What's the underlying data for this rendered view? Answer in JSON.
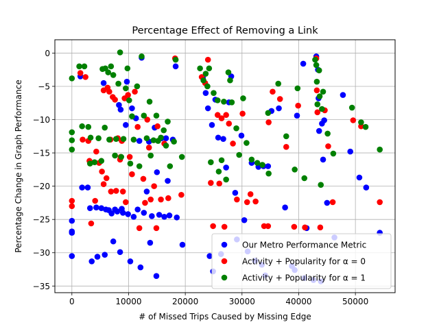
{
  "chart_data": {
    "type": "scatter",
    "title": "Percentage Effect of Removing a Link",
    "xlabel": "# of Missed Trips Caused by Missing Edge",
    "ylabel": "Percentage Change in Graph Performance",
    "xlim": [
      -3000,
      57000
    ],
    "ylim": [
      -36,
      2
    ],
    "xticks": [
      0,
      10000,
      20000,
      30000,
      40000,
      50000
    ],
    "yticks": [
      0,
      -5,
      -10,
      -15,
      -20,
      -25,
      -30,
      -35
    ],
    "grid": true,
    "legend_position": "lower-right",
    "series": [
      {
        "name": "Our Metro Performance Metric",
        "color": "#0000ff",
        "points": [
          [
            0,
            -25.2
          ],
          [
            0,
            -26.8
          ],
          [
            0,
            -27
          ],
          [
            0,
            -30.5
          ],
          [
            1500,
            -3.5
          ],
          [
            1800,
            -20.2
          ],
          [
            2800,
            -20.2
          ],
          [
            3200,
            -23.3
          ],
          [
            3500,
            -31.3
          ],
          [
            4300,
            -23.2
          ],
          [
            4500,
            -30.6
          ],
          [
            5200,
            -23.3
          ],
          [
            5800,
            -30.3
          ],
          [
            5600,
            -4.5
          ],
          [
            6000,
            -23.5
          ],
          [
            6500,
            -23.6
          ],
          [
            7000,
            -24.1
          ],
          [
            7300,
            -28.3
          ],
          [
            7600,
            -23.5
          ],
          [
            8000,
            -23.8
          ],
          [
            8300,
            -7.8
          ],
          [
            8500,
            -29.9
          ],
          [
            8600,
            -8.5
          ],
          [
            8800,
            -23.4
          ],
          [
            9000,
            -24.0
          ],
          [
            9500,
            -10.8
          ],
          [
            9700,
            -4.3
          ],
          [
            9900,
            -24.2
          ],
          [
            10300,
            -31.3
          ],
          [
            10600,
            -8.3
          ],
          [
            10900,
            -24.6
          ],
          [
            11300,
            -9.8
          ],
          [
            11600,
            -23.5
          ],
          [
            11900,
            -13.2
          ],
          [
            12100,
            -32.2
          ],
          [
            12300,
            -0.7
          ],
          [
            12700,
            -24.0
          ],
          [
            13200,
            -20.8
          ],
          [
            13600,
            -13.3
          ],
          [
            13800,
            -28.5
          ],
          [
            14100,
            -24.5
          ],
          [
            14600,
            -11.2
          ],
          [
            14900,
            -33.5
          ],
          [
            15000,
            -17.9
          ],
          [
            15400,
            -24.3
          ],
          [
            15800,
            -12.8
          ],
          [
            16300,
            -24.6
          ],
          [
            16600,
            -12.8
          ],
          [
            16900,
            -19.2
          ],
          [
            17200,
            -24.4
          ],
          [
            17800,
            -13.0
          ],
          [
            18300,
            -2.0
          ],
          [
            18500,
            -24.7
          ],
          [
            19500,
            -28.8
          ],
          [
            23100,
            -3.7
          ],
          [
            23600,
            -6.0
          ],
          [
            24000,
            -8.3
          ],
          [
            24300,
            -30.5
          ],
          [
            24700,
            -10.8
          ],
          [
            24900,
            -32.8
          ],
          [
            25300,
            -7.0
          ],
          [
            25800,
            -12.7
          ],
          [
            26300,
            -30.2
          ],
          [
            26700,
            -12.9
          ],
          [
            27200,
            -17.2
          ],
          [
            27700,
            -7.4
          ],
          [
            28100,
            -3.5
          ],
          [
            28800,
            -21.0
          ],
          [
            29100,
            -28.0
          ],
          [
            29900,
            -12.4
          ],
          [
            30400,
            -25.1
          ],
          [
            31000,
            -29.8
          ],
          [
            31700,
            -16.5
          ],
          [
            32300,
            -31.2
          ],
          [
            32900,
            -17.1
          ],
          [
            33500,
            -31.8
          ],
          [
            33800,
            -17.0
          ],
          [
            34100,
            -33.4
          ],
          [
            34600,
            -17.0
          ],
          [
            35200,
            -8.7
          ],
          [
            36500,
            -8.3
          ],
          [
            37600,
            -23.2
          ],
          [
            38800,
            -32.0
          ],
          [
            39300,
            -32.6
          ],
          [
            39700,
            -9.4
          ],
          [
            40800,
            -1.6
          ],
          [
            41000,
            -33.8
          ],
          [
            41400,
            -26.3
          ],
          [
            42600,
            -34.1
          ],
          [
            43100,
            -0.5
          ],
          [
            43400,
            -2.5
          ],
          [
            43500,
            -6.8
          ],
          [
            43600,
            -11.7
          ],
          [
            43900,
            -34.3
          ],
          [
            44100,
            -10.6
          ],
          [
            44300,
            -16.0
          ],
          [
            44500,
            -10.1
          ],
          [
            45000,
            -22.5
          ],
          [
            46300,
            -27.7
          ],
          [
            47800,
            -6.3
          ],
          [
            49100,
            -14.8
          ],
          [
            50700,
            -18.7
          ],
          [
            51900,
            -20.2
          ],
          [
            54300,
            -27.0
          ]
        ]
      },
      {
        "name": "Activity + Popularity for α = 0",
        "color": "#ff0000",
        "points": [
          [
            0,
            -22.2
          ],
          [
            0,
            -23
          ],
          [
            1500,
            -3.0
          ],
          [
            1900,
            -13.0
          ],
          [
            2400,
            -3.6
          ],
          [
            2900,
            -13.2
          ],
          [
            3100,
            -16.2
          ],
          [
            3400,
            -25.6
          ],
          [
            4300,
            -14.8
          ],
          [
            4100,
            -22.2
          ],
          [
            4800,
            -16.5
          ],
          [
            5300,
            -17.8
          ],
          [
            5600,
            -5.6
          ],
          [
            5600,
            -19.7
          ],
          [
            6100,
            -18.8
          ],
          [
            6300,
            -5.2
          ],
          [
            6600,
            -5.8
          ],
          [
            6800,
            -13.0
          ],
          [
            6900,
            -20.8
          ],
          [
            7200,
            -6.6
          ],
          [
            7600,
            -7.0
          ],
          [
            7800,
            -20.7
          ],
          [
            8100,
            -12.8
          ],
          [
            8500,
            -16.0
          ],
          [
            8600,
            -15.6
          ],
          [
            8800,
            -13.2
          ],
          [
            9000,
            -20.8
          ],
          [
            9300,
            -6.8
          ],
          [
            9500,
            -22.4
          ],
          [
            9900,
            -6.3
          ],
          [
            10200,
            -15.6
          ],
          [
            10600,
            -18.2
          ],
          [
            11100,
            -5.8
          ],
          [
            11600,
            -11.1
          ],
          [
            11900,
            -26.3
          ],
          [
            12600,
            -18.9
          ],
          [
            12900,
            -22.5
          ],
          [
            13300,
            -10.0
          ],
          [
            13600,
            -14.2
          ],
          [
            13900,
            -22.0
          ],
          [
            14500,
            -20.0
          ],
          [
            14900,
            -26.3
          ],
          [
            15100,
            -11.0
          ],
          [
            15700,
            -22.0
          ],
          [
            16300,
            -13.6
          ],
          [
            17000,
            -21.8
          ],
          [
            18200,
            -0.8
          ],
          [
            19300,
            -21.3
          ],
          [
            22900,
            -3.6
          ],
          [
            23500,
            -4.5
          ],
          [
            24000,
            -1.0
          ],
          [
            24500,
            -19.5
          ],
          [
            24900,
            -26.0
          ],
          [
            25700,
            -9.3
          ],
          [
            26000,
            -19.6
          ],
          [
            26400,
            -9.8
          ],
          [
            26900,
            -26.1
          ],
          [
            27200,
            -9.3
          ],
          [
            27700,
            -10.6
          ],
          [
            28400,
            -13.6
          ],
          [
            29100,
            -22.0
          ],
          [
            30100,
            -9.1
          ],
          [
            30900,
            -22.4
          ],
          [
            31500,
            -21.2
          ],
          [
            32400,
            -22.3
          ],
          [
            33900,
            -26.0
          ],
          [
            34600,
            -26.0
          ],
          [
            34700,
            -10.4
          ],
          [
            35400,
            -5.8
          ],
          [
            36700,
            -6.9
          ],
          [
            37800,
            -14.1
          ],
          [
            39200,
            -26.1
          ],
          [
            39900,
            -7.9
          ],
          [
            41100,
            -26.2
          ],
          [
            43100,
            -0.8
          ],
          [
            43200,
            -5.6
          ],
          [
            43300,
            -8.9
          ],
          [
            43800,
            -26.2
          ],
          [
            44600,
            -8.6
          ],
          [
            45200,
            -14.0
          ],
          [
            46000,
            -22.4
          ],
          [
            49600,
            -10.1
          ],
          [
            51000,
            -11.0
          ],
          [
            54300,
            -22.4
          ]
        ]
      },
      {
        "name": "Activity + Popularity for α = 1",
        "color": "#008000",
        "points": [
          [
            0,
            -3.8
          ],
          [
            0,
            -11.9
          ],
          [
            0,
            -13.1
          ],
          [
            0,
            -14.5
          ],
          [
            1300,
            -2.0
          ],
          [
            1800,
            -11.0
          ],
          [
            2200,
            -2.0
          ],
          [
            2900,
            -11.1
          ],
          [
            3300,
            -12.7
          ],
          [
            3200,
            -16.6
          ],
          [
            4000,
            -16.4
          ],
          [
            4700,
            -12.8
          ],
          [
            5200,
            -16.2
          ],
          [
            5400,
            -2.4
          ],
          [
            5800,
            -11.2
          ],
          [
            5900,
            -2.3
          ],
          [
            6400,
            -2.9
          ],
          [
            6600,
            -13.0
          ],
          [
            6900,
            -2.0
          ],
          [
            7300,
            -3.3
          ],
          [
            7600,
            -15.4
          ],
          [
            7800,
            -12.9
          ],
          [
            8200,
            -4.6
          ],
          [
            8500,
            0.1
          ],
          [
            8700,
            -15.6
          ],
          [
            9100,
            -12.9
          ],
          [
            9500,
            -5.3
          ],
          [
            9800,
            -2.3
          ],
          [
            10100,
            -7.1
          ],
          [
            10300,
            -16.6
          ],
          [
            10600,
            -9.5
          ],
          [
            10900,
            -13.0
          ],
          [
            11500,
            -5.0
          ],
          [
            11900,
            -17.0
          ],
          [
            12300,
            -0.5
          ],
          [
            12700,
            -9.4
          ],
          [
            13200,
            -12.8
          ],
          [
            13700,
            -7.3
          ],
          [
            13900,
            -15.4
          ],
          [
            14400,
            -13.1
          ],
          [
            14900,
            -9.4
          ],
          [
            15200,
            -13.2
          ],
          [
            15700,
            -12.7
          ],
          [
            16200,
            -11.6
          ],
          [
            16600,
            -13.9
          ],
          [
            16900,
            -10.3
          ],
          [
            17300,
            -17.0
          ],
          [
            18000,
            -13.3
          ],
          [
            18300,
            -1.0
          ],
          [
            19400,
            -15.6
          ],
          [
            22600,
            -2.3
          ],
          [
            23200,
            -4.1
          ],
          [
            23600,
            -3.1
          ],
          [
            23900,
            -5.0
          ],
          [
            24200,
            -2.3
          ],
          [
            24500,
            -16.4
          ],
          [
            25000,
            -6.0
          ],
          [
            25700,
            -7.1
          ],
          [
            25900,
            -17.8
          ],
          [
            26400,
            -16.1
          ],
          [
            26800,
            -7.3
          ],
          [
            27200,
            -19.0
          ],
          [
            27600,
            -2.9
          ],
          [
            27900,
            -4.1
          ],
          [
            28200,
            -7.4
          ],
          [
            29000,
            -11.3
          ],
          [
            29500,
            -15.3
          ],
          [
            30200,
            -6.8
          ],
          [
            30800,
            -13.5
          ],
          [
            31700,
            -16.0
          ],
          [
            32700,
            -16.5
          ],
          [
            33600,
            -16.8
          ],
          [
            34600,
            -9.0
          ],
          [
            34700,
            -18.1
          ],
          [
            36400,
            -4.6
          ],
          [
            37800,
            -12.5
          ],
          [
            39300,
            -17.5
          ],
          [
            39800,
            -5.3
          ],
          [
            41000,
            -18.8
          ],
          [
            42900,
            -1.0
          ],
          [
            43100,
            -1.8
          ],
          [
            43200,
            -4.3
          ],
          [
            43300,
            -7.7
          ],
          [
            43600,
            -2.6
          ],
          [
            43700,
            -6.5
          ],
          [
            43900,
            -19.8
          ],
          [
            44100,
            -8.4
          ],
          [
            44300,
            -5.8
          ],
          [
            45100,
            -12.1
          ],
          [
            46100,
            -15.1
          ],
          [
            49400,
            -8.2
          ],
          [
            51000,
            -10.4
          ],
          [
            51800,
            -11.1
          ],
          [
            54300,
            -14.5
          ]
        ]
      }
    ]
  }
}
